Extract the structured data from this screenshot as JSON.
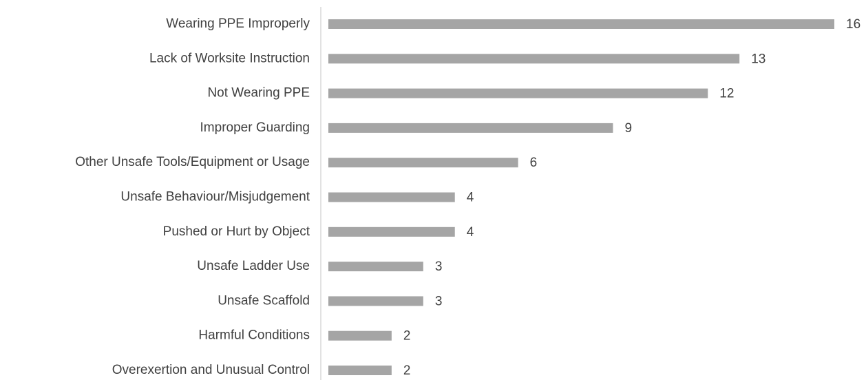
{
  "chart_data": {
    "type": "barh",
    "categories": [
      "Wearing PPE Improperly",
      "Lack of Worksite Instruction",
      "Not Wearing PPE",
      "Improper Guarding",
      "Other Unsafe Tools/Equipment or Usage",
      "Unsafe Behaviour/Misjudgement",
      "Pushed or Hurt by Object",
      "Unsafe Ladder Use",
      "Unsafe Scaffold",
      "Harmful Conditions",
      "Overexertion and Unusual Control"
    ],
    "values": [
      16,
      13,
      12,
      9,
      6,
      4,
      4,
      3,
      3,
      2,
      2
    ],
    "color": "#a5a5a5",
    "xlim": [
      0,
      16
    ]
  }
}
